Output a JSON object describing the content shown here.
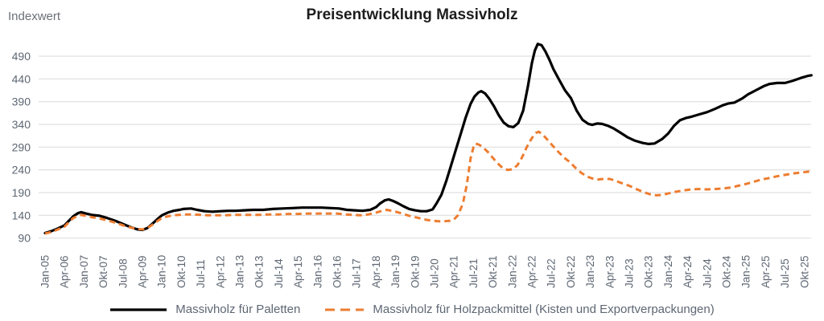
{
  "header": {
    "title": "Preisentwicklung Massivholz",
    "y_axis_title": "Indexwert"
  },
  "colors": {
    "grid": "#D9D9D9",
    "tick_label": "#5E6773",
    "title": "#1D1D1D",
    "series_paletten": "#000000",
    "series_holzpackmittel": "#ED7D31"
  },
  "chart_data": {
    "type": "line",
    "title": "Preisentwicklung Massivholz",
    "ylabel": "Indexwert",
    "ylim": [
      90,
      530
    ],
    "grid": "horizontal-only",
    "legend_position": "bottom-center",
    "y_ticks": [
      90,
      140,
      190,
      240,
      290,
      340,
      390,
      440,
      490
    ],
    "x_tick_labels": [
      "Jan-05",
      "Apr-06",
      "Jan-07",
      "Okt-07",
      "Jul-08",
      "Apr-09",
      "Jan-10",
      "Okt-10",
      "Jul-11",
      "Apr-12",
      "Jan-13",
      "Okt-13",
      "Jul-14",
      "Apr-15",
      "Jan-16",
      "Okt-16",
      "Jul-17",
      "Apr-18",
      "Jan-19",
      "Okt-19",
      "Jul-20",
      "Apr-21",
      "Jul-21",
      "Okt-21",
      "Jan-22",
      "Apr-22",
      "Jul-22",
      "Okt-22",
      "Jan-23",
      "Apr-23",
      "Jul-23",
      "Okt-23",
      "Jan-24",
      "Apr-24",
      "Jul-24",
      "Okt-24",
      "Jan-25",
      "Apr-25",
      "Jul-25",
      "Okt-25"
    ],
    "x_unit_note": "series point x values are in x-tick index units (0 = Jan-05 tick, 39 = Okt-25 tick)",
    "series": [
      {
        "name": "Massivholz für Paletten",
        "color": "#000000",
        "style": "solid",
        "width": 3.2,
        "points": [
          [
            0,
            101
          ],
          [
            0.3,
            105
          ],
          [
            0.6,
            110
          ],
          [
            1,
            118
          ],
          [
            1.2,
            127
          ],
          [
            1.45,
            138
          ],
          [
            1.7,
            145
          ],
          [
            1.85,
            147
          ],
          [
            2.1,
            144
          ],
          [
            2.4,
            141
          ],
          [
            2.8,
            139
          ],
          [
            3.2,
            134
          ],
          [
            3.6,
            128
          ],
          [
            4,
            121
          ],
          [
            4.4,
            114
          ],
          [
            4.75,
            109
          ],
          [
            5,
            108
          ],
          [
            5.25,
            112
          ],
          [
            5.5,
            121
          ],
          [
            5.75,
            131
          ],
          [
            6,
            140
          ],
          [
            6.3,
            146
          ],
          [
            6.6,
            150
          ],
          [
            6.9,
            152
          ],
          [
            7.1,
            154
          ],
          [
            7.5,
            155
          ],
          [
            7.8,
            152
          ],
          [
            8.2,
            149
          ],
          [
            8.6,
            148
          ],
          [
            9,
            149
          ],
          [
            9.4,
            150
          ],
          [
            9.8,
            150
          ],
          [
            10.2,
            151
          ],
          [
            10.7,
            152
          ],
          [
            11.2,
            152
          ],
          [
            11.7,
            154
          ],
          [
            12.2,
            155
          ],
          [
            12.7,
            156
          ],
          [
            13.2,
            157
          ],
          [
            13.7,
            157
          ],
          [
            14.2,
            157
          ],
          [
            14.7,
            156
          ],
          [
            15.1,
            155
          ],
          [
            15.5,
            152
          ],
          [
            15.9,
            151
          ],
          [
            16.3,
            150
          ],
          [
            16.7,
            152
          ],
          [
            17,
            158
          ],
          [
            17.2,
            166
          ],
          [
            17.45,
            173
          ],
          [
            17.65,
            175
          ],
          [
            17.85,
            172
          ],
          [
            18.1,
            167
          ],
          [
            18.4,
            160
          ],
          [
            18.7,
            154
          ],
          [
            19,
            151
          ],
          [
            19.3,
            149
          ],
          [
            19.6,
            149
          ],
          [
            19.9,
            153
          ],
          [
            20.1,
            166
          ],
          [
            20.35,
            185
          ],
          [
            20.6,
            215
          ],
          [
            20.85,
            250
          ],
          [
            21.1,
            285
          ],
          [
            21.35,
            320
          ],
          [
            21.6,
            355
          ],
          [
            21.85,
            385
          ],
          [
            22.05,
            401
          ],
          [
            22.25,
            410
          ],
          [
            22.4,
            413
          ],
          [
            22.6,
            408
          ],
          [
            22.8,
            397
          ],
          [
            23.05,
            380
          ],
          [
            23.3,
            360
          ],
          [
            23.55,
            344
          ],
          [
            23.8,
            336
          ],
          [
            24.05,
            334
          ],
          [
            24.3,
            343
          ],
          [
            24.55,
            370
          ],
          [
            24.8,
            425
          ],
          [
            25,
            475
          ],
          [
            25.15,
            502
          ],
          [
            25.3,
            517
          ],
          [
            25.5,
            514
          ],
          [
            25.7,
            500
          ],
          [
            25.9,
            482
          ],
          [
            26.1,
            462
          ],
          [
            26.4,
            438
          ],
          [
            26.7,
            415
          ],
          [
            27,
            398
          ],
          [
            27.3,
            370
          ],
          [
            27.6,
            350
          ],
          [
            27.9,
            341
          ],
          [
            28.1,
            339
          ],
          [
            28.35,
            342
          ],
          [
            28.6,
            341
          ],
          [
            28.9,
            337
          ],
          [
            29.2,
            331
          ],
          [
            29.5,
            323
          ],
          [
            29.9,
            312
          ],
          [
            30.3,
            304
          ],
          [
            30.7,
            299
          ],
          [
            31,
            297
          ],
          [
            31.3,
            298
          ],
          [
            31.7,
            308
          ],
          [
            32,
            320
          ],
          [
            32.3,
            337
          ],
          [
            32.6,
            349
          ],
          [
            32.9,
            354
          ],
          [
            33.2,
            357
          ],
          [
            33.6,
            362
          ],
          [
            34,
            367
          ],
          [
            34.4,
            374
          ],
          [
            34.8,
            382
          ],
          [
            35.1,
            386
          ],
          [
            35.4,
            388
          ],
          [
            35.8,
            397
          ],
          [
            36.1,
            406
          ],
          [
            36.5,
            415
          ],
          [
            36.9,
            424
          ],
          [
            37.2,
            429
          ],
          [
            37.6,
            431
          ],
          [
            38,
            431
          ],
          [
            38.4,
            436
          ],
          [
            38.8,
            442
          ],
          [
            39.2,
            447
          ],
          [
            39.35,
            448
          ]
        ]
      },
      {
        "name": "Massivholz für Holzpackmittel (Kisten und Exportverpackungen)",
        "color": "#ED7D31",
        "style": "dashed",
        "width": 3,
        "dash": "7.5 5",
        "points": [
          [
            0,
            100
          ],
          [
            0.3,
            103
          ],
          [
            0.6,
            108
          ],
          [
            1,
            115
          ],
          [
            1.2,
            124
          ],
          [
            1.45,
            134
          ],
          [
            1.7,
            139
          ],
          [
            1.85,
            141
          ],
          [
            2.1,
            139
          ],
          [
            2.4,
            136
          ],
          [
            2.8,
            133
          ],
          [
            3.2,
            129
          ],
          [
            3.6,
            124
          ],
          [
            4,
            118
          ],
          [
            4.4,
            113
          ],
          [
            4.75,
            110
          ],
          [
            5,
            109
          ],
          [
            5.25,
            112
          ],
          [
            5.5,
            119
          ],
          [
            5.75,
            127
          ],
          [
            6,
            134
          ],
          [
            6.3,
            138
          ],
          [
            6.6,
            140
          ],
          [
            6.9,
            141
          ],
          [
            7.2,
            142
          ],
          [
            7.6,
            142
          ],
          [
            8,
            141
          ],
          [
            8.4,
            140
          ],
          [
            8.8,
            140
          ],
          [
            9.2,
            140
          ],
          [
            9.6,
            141
          ],
          [
            10,
            141
          ],
          [
            10.5,
            141
          ],
          [
            11,
            141
          ],
          [
            11.5,
            142
          ],
          [
            12,
            142
          ],
          [
            12.5,
            143
          ],
          [
            13,
            143
          ],
          [
            13.5,
            144
          ],
          [
            14,
            144
          ],
          [
            14.5,
            144
          ],
          [
            15,
            144
          ],
          [
            15.4,
            142
          ],
          [
            15.8,
            141
          ],
          [
            16.2,
            140
          ],
          [
            16.6,
            142
          ],
          [
            17,
            146
          ],
          [
            17.3,
            150
          ],
          [
            17.55,
            152
          ],
          [
            17.8,
            150
          ],
          [
            18.1,
            147
          ],
          [
            18.4,
            143
          ],
          [
            18.7,
            139
          ],
          [
            19,
            136
          ],
          [
            19.3,
            133
          ],
          [
            19.6,
            130
          ],
          [
            19.9,
            128
          ],
          [
            20.2,
            127
          ],
          [
            20.5,
            127
          ],
          [
            20.8,
            128
          ],
          [
            21,
            131
          ],
          [
            21.2,
            140
          ],
          [
            21.45,
            165
          ],
          [
            21.65,
            205
          ],
          [
            21.85,
            265
          ],
          [
            22,
            290
          ],
          [
            22.1,
            298
          ],
          [
            22.3,
            295
          ],
          [
            22.5,
            289
          ],
          [
            22.75,
            279
          ],
          [
            23,
            266
          ],
          [
            23.25,
            254
          ],
          [
            23.5,
            244
          ],
          [
            23.75,
            240
          ],
          [
            24,
            241
          ],
          [
            24.25,
            250
          ],
          [
            24.5,
            268
          ],
          [
            24.75,
            291
          ],
          [
            25,
            310
          ],
          [
            25.2,
            321
          ],
          [
            25.35,
            324
          ],
          [
            25.55,
            318
          ],
          [
            25.8,
            306
          ],
          [
            26.05,
            294
          ],
          [
            26.35,
            280
          ],
          [
            26.65,
            267
          ],
          [
            26.95,
            257
          ],
          [
            27.25,
            244
          ],
          [
            27.55,
            233
          ],
          [
            27.85,
            225
          ],
          [
            28.1,
            221
          ],
          [
            28.4,
            219
          ],
          [
            28.7,
            220
          ],
          [
            29,
            220
          ],
          [
            29.3,
            216
          ],
          [
            29.6,
            211
          ],
          [
            30,
            205
          ],
          [
            30.4,
            197
          ],
          [
            30.8,
            190
          ],
          [
            31.1,
            186
          ],
          [
            31.4,
            184
          ],
          [
            31.7,
            185
          ],
          [
            32,
            188
          ],
          [
            32.4,
            192
          ],
          [
            32.8,
            195
          ],
          [
            33.2,
            197
          ],
          [
            33.6,
            198
          ],
          [
            34,
            197
          ],
          [
            34.4,
            198
          ],
          [
            34.8,
            199
          ],
          [
            35.2,
            201
          ],
          [
            35.6,
            205
          ],
          [
            36,
            209
          ],
          [
            36.4,
            214
          ],
          [
            36.8,
            219
          ],
          [
            37.2,
            222
          ],
          [
            37.6,
            226
          ],
          [
            38,
            229
          ],
          [
            38.4,
            232
          ],
          [
            38.8,
            234
          ],
          [
            39.2,
            236
          ],
          [
            39.35,
            237
          ]
        ]
      }
    ]
  }
}
